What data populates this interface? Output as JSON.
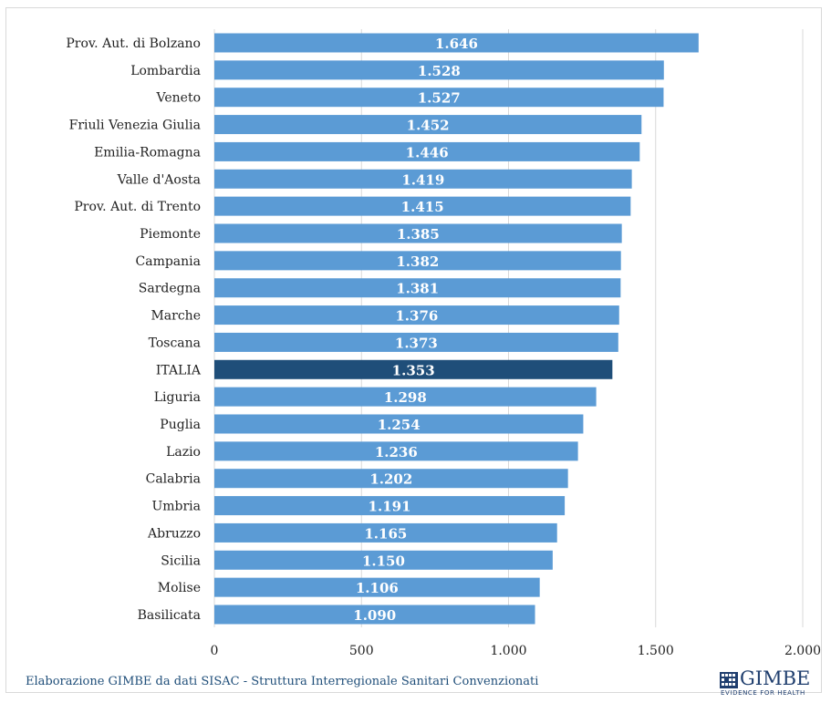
{
  "chart_data": {
    "type": "bar",
    "orientation": "horizontal",
    "categories": [
      "Prov. Aut. di Bolzano",
      "Lombardia",
      "Veneto",
      "Friuli Venezia Giulia",
      "Emilia-Romagna",
      "Valle d'Aosta",
      "Prov. Aut. di Trento",
      "Piemonte",
      "Campania",
      "Sardegna",
      "Marche",
      "Toscana",
      "ITALIA",
      "Liguria",
      "Puglia",
      "Lazio",
      "Calabria",
      "Umbria",
      "Abruzzo",
      "Sicilia",
      "Molise",
      "Basilicata"
    ],
    "values": [
      1646,
      1528,
      1527,
      1452,
      1446,
      1419,
      1415,
      1385,
      1382,
      1381,
      1376,
      1373,
      1353,
      1298,
      1254,
      1236,
      1202,
      1191,
      1165,
      1150,
      1106,
      1090
    ],
    "value_labels": [
      "1.646",
      "1.528",
      "1.527",
      "1.452",
      "1.446",
      "1.419",
      "1.415",
      "1.385",
      "1.382",
      "1.381",
      "1.376",
      "1.373",
      "1.353",
      "1.298",
      "1.254",
      "1.236",
      "1.202",
      "1.191",
      "1.165",
      "1.150",
      "1.106",
      "1.090"
    ],
    "xlim": [
      0,
      2000
    ],
    "xticks": [
      0,
      500,
      1000,
      1500,
      2000
    ],
    "xtick_labels": [
      "0",
      "500",
      "1.000",
      "1.500",
      "2.000"
    ],
    "highlight_category": "ITALIA",
    "colors": {
      "bar": "#5b9bd5",
      "highlight": "#1f4e79",
      "grid": "#d9d9d9"
    },
    "grid": true
  },
  "source_note": "Elaborazione GIMBE da dati SISAC - Struttura Interregionale Sanitari Convenzionati",
  "logo": {
    "name": "GIMBE",
    "tagline": "EVIDENCE FOR HEALTH",
    "icon": "gimbe-logo-icon"
  }
}
